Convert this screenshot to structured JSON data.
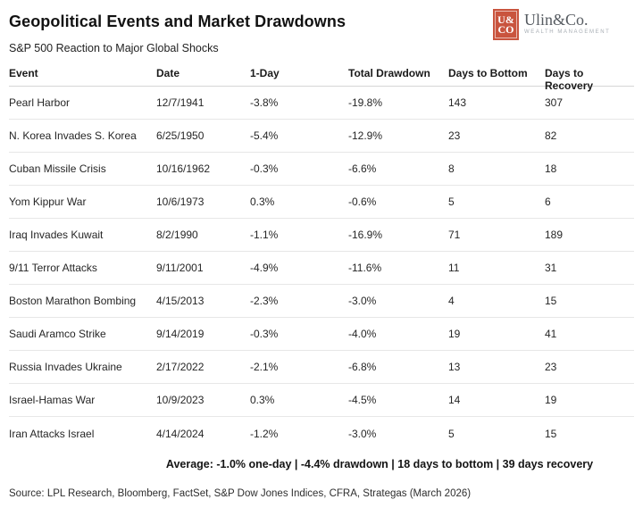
{
  "page": {
    "title": "Geopolitical Events and Market Drawdowns",
    "subtitle": "S&P 500 Reaction to Major Global Shocks",
    "average_line": "Average: -1.0% one-day | -4.4% drawdown | 18 days to bottom | 39 days recovery",
    "source": "Source: LPL Research, Bloomberg, FactSet, S&P Dow Jones Indices, CFRA, Strategas (March 2026)"
  },
  "logo": {
    "stamp_line1": "U&",
    "stamp_line2": "CO",
    "name": "Ulin&Co.",
    "tagline": "WEALTH MANAGEMENT",
    "stamp_color": "#c9543e"
  },
  "chart_data": {
    "type": "table",
    "title": "Geopolitical Events and Market Drawdowns",
    "subtitle": "S&P 500 Reaction to Major Global Shocks",
    "columns": [
      "Event",
      "Date",
      "1-Day",
      "Total Drawdown",
      "Days to Bottom",
      "Days to Recovery"
    ],
    "rows": [
      [
        "Pearl Harbor",
        "12/7/1941",
        "-3.8%",
        "-19.8%",
        "143",
        "307"
      ],
      [
        "N. Korea Invades S. Korea",
        "6/25/1950",
        "-5.4%",
        "-12.9%",
        "23",
        "82"
      ],
      [
        "Cuban Missile Crisis",
        "10/16/1962",
        "-0.3%",
        "-6.6%",
        "8",
        "18"
      ],
      [
        "Yom Kippur War",
        "10/6/1973",
        "0.3%",
        "-0.6%",
        "5",
        "6"
      ],
      [
        "Iraq Invades Kuwait",
        "8/2/1990",
        "-1.1%",
        "-16.9%",
        "71",
        "189"
      ],
      [
        "9/11 Terror Attacks",
        "9/11/2001",
        "-4.9%",
        "-11.6%",
        "11",
        "31"
      ],
      [
        "Boston Marathon Bombing",
        "4/15/2013",
        "-2.3%",
        "-3.0%",
        "4",
        "15"
      ],
      [
        "Saudi Aramco Strike",
        "9/14/2019",
        "-0.3%",
        "-4.0%",
        "19",
        "41"
      ],
      [
        "Russia Invades Ukraine",
        "2/17/2022",
        "-2.1%",
        "-6.8%",
        "13",
        "23"
      ],
      [
        "Israel-Hamas War",
        "10/9/2023",
        "0.3%",
        "-4.5%",
        "14",
        "19"
      ],
      [
        "Iran Attacks Israel",
        "4/14/2024",
        "-1.2%",
        "-3.0%",
        "5",
        "15"
      ]
    ],
    "summary": {
      "average_one_day": "-1.0%",
      "average_drawdown": "-4.4%",
      "average_days_to_bottom": 18,
      "average_days_to_recovery": 39
    }
  }
}
